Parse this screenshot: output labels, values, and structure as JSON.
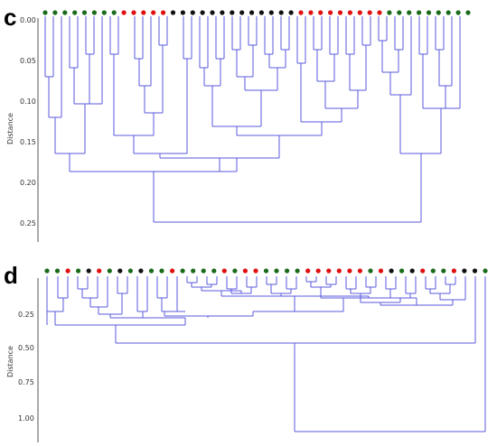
{
  "colors": {
    "green": "#1a6b1a",
    "red": "#e01010",
    "black": "#111111",
    "branch": "#5a5adc"
  },
  "panel_c": {
    "letter": "c",
    "axis_title": "Distance",
    "ticks": [
      "0.00",
      "0.05",
      "0.10",
      "0.15",
      "0.20",
      "0.25"
    ],
    "leaves": [
      "green",
      "green",
      "green",
      "green",
      "green",
      "green",
      "green",
      "green",
      "red",
      "red",
      "red",
      "red",
      "red",
      "black",
      "black",
      "black",
      "black",
      "black",
      "black",
      "black",
      "black",
      "black",
      "black",
      "black",
      "black",
      "black",
      "red",
      "red",
      "red",
      "red",
      "red",
      "red",
      "red",
      "red",
      "red",
      "green",
      "green",
      "green",
      "green",
      "green",
      "green",
      "green",
      "green",
      "green"
    ]
  },
  "panel_d": {
    "letter": "d",
    "axis_title": "Distance",
    "ticks": [
      "0.25",
      "0.50",
      "0.75",
      "1.00"
    ],
    "leaves": [
      "green",
      "green",
      "red",
      "green",
      "black",
      "red",
      "green",
      "black",
      "green",
      "black",
      "green",
      "green",
      "red",
      "green",
      "green",
      "green",
      "green",
      "red",
      "green",
      "red",
      "red",
      "green",
      "green",
      "green",
      "green",
      "red",
      "red",
      "red",
      "red",
      "red",
      "red",
      "green",
      "red",
      "black",
      "green",
      "black",
      "red",
      "green",
      "green",
      "red",
      "black",
      "black",
      "green"
    ]
  }
}
